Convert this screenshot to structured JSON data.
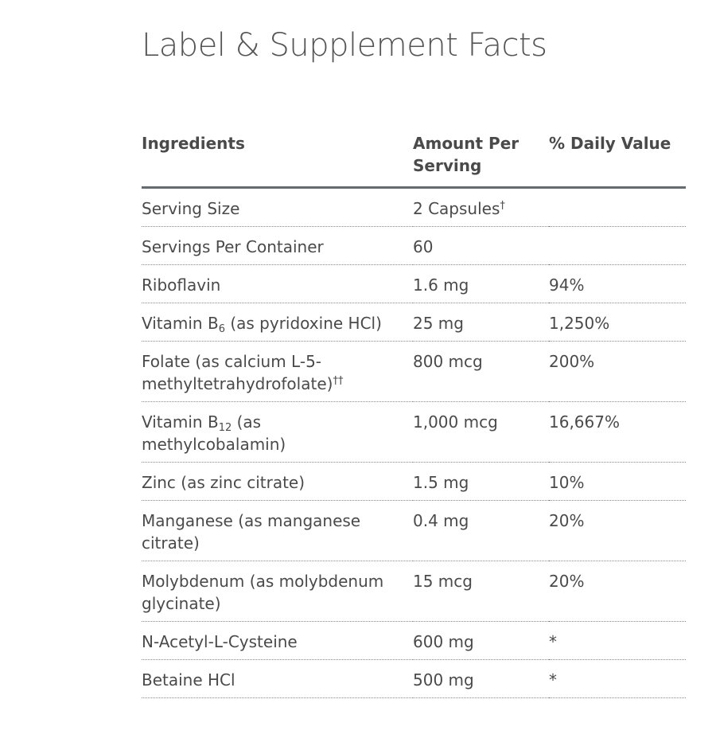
{
  "page": {
    "title": "Label & Supplement Facts"
  },
  "table": {
    "headers": {
      "ingredients": "Ingredients",
      "amount": "Amount Per Serving",
      "daily_value": "% Daily Value"
    },
    "rows": [
      {
        "name": "Serving Size",
        "amount": "2 Capsules",
        "amount_mark": "†",
        "dv": ""
      },
      {
        "name": "Servings Per Container",
        "amount": "60",
        "dv": ""
      },
      {
        "name": "Riboflavin",
        "amount": "1.6 mg",
        "dv": "94%"
      },
      {
        "name_pre": "Vitamin B",
        "name_sub": "6",
        "name_post": " (as pyridoxine HCl)",
        "amount": "25 mg",
        "dv": "1,250%"
      },
      {
        "name": "Folate (as calcium L-5-methyltetrahydrofolate)",
        "name_mark": "††",
        "amount": "800 mcg",
        "dv": "200%"
      },
      {
        "name_pre": "Vitamin B",
        "name_sub": "12",
        "name_post": " (as methylcobalamin)",
        "amount": "1,000 mcg",
        "dv": "16,667%"
      },
      {
        "name": "Zinc (as zinc citrate)",
        "amount": "1.5 mg",
        "dv": "10%"
      },
      {
        "name": "Manganese (as manganese citrate)",
        "amount": "0.4 mg",
        "dv": "20%"
      },
      {
        "name": "Molybdenum (as molybdenum glycinate)",
        "amount": "15 mcg",
        "dv": "20%"
      },
      {
        "name": "N-Acetyl-L-Cysteine",
        "amount": "600 mg",
        "dv": "*"
      },
      {
        "name": "Betaine HCl",
        "amount": "500 mg",
        "dv": "*"
      }
    ]
  }
}
